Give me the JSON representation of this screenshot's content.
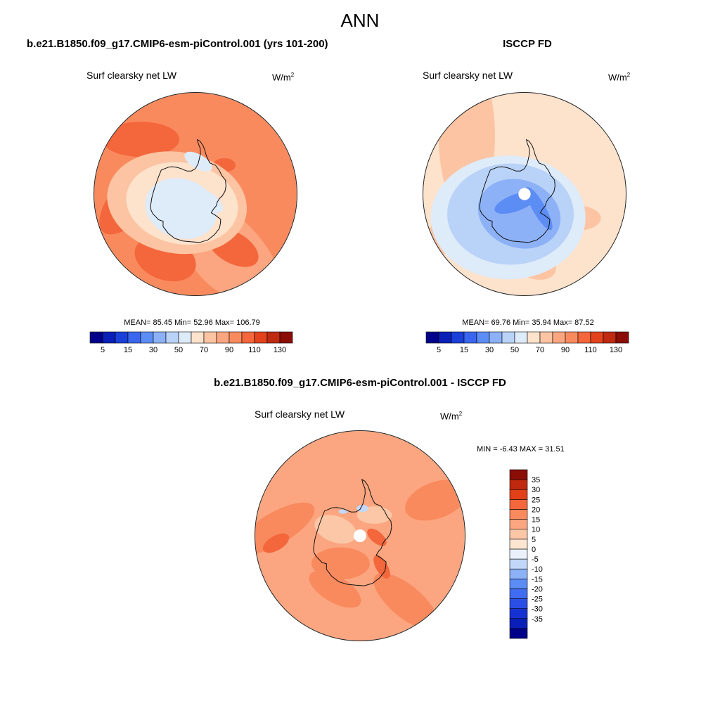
{
  "title": "ANN",
  "colors": {
    "outline": "#222222",
    "coast": "#111111",
    "pole": "#ffffff"
  },
  "abs_levels": {
    "colors": [
      "#00008a",
      "#0a1fb8",
      "#1b40d8",
      "#3a66ef",
      "#5c8df5",
      "#8cb1f7",
      "#b9d2f8",
      "#deebf9",
      "#fde2cc",
      "#fcc4a2",
      "#fba680",
      "#f98a5e",
      "#f4663b",
      "#e2431d",
      "#bf2a10",
      "#8a0d06"
    ],
    "tick_labels": [
      "5",
      "15",
      "30",
      "50",
      "70",
      "90",
      "110",
      "130"
    ]
  },
  "diff_levels": {
    "colors": [
      "#00008a",
      "#0a1fb8",
      "#1631d1",
      "#2b4fe6",
      "#3f6cf0",
      "#5c8df5",
      "#8cb1f7",
      "#c3d8f8",
      "#eaf1fb",
      "#fde5d2",
      "#fcc7a6",
      "#fba680",
      "#f98a5e",
      "#f4663b",
      "#e14018",
      "#c0290f",
      "#8a0d06"
    ],
    "tick_labels": [
      "35",
      "30",
      "25",
      "20",
      "15",
      "10",
      "5",
      "0",
      "-5",
      "-10",
      "-15",
      "-20",
      "-25",
      "-30",
      "-35"
    ]
  },
  "panels": [
    {
      "title": "b.e21.B1850.f09_g17.CMIP6-esm-piControl.001 (yrs 101-200)",
      "variable": "Surf clearsky net LW",
      "units_base": "W/m",
      "units_exp": "2",
      "stats": "MEAN=  85.45  Min=  52.96  Max= 106.79",
      "map": {
        "ocean_level": 11,
        "zones": [
          {
            "level": 10,
            "lon": 150,
            "lat": -66,
            "rx": 110,
            "ry": 45,
            "rot": 40
          },
          {
            "level": 10,
            "lon": 140,
            "lat": -68,
            "rx": 95,
            "ry": 40,
            "rot": 60
          },
          {
            "level": 12,
            "lon": 40,
            "lat": -58,
            "rx": 60,
            "ry": 28,
            "rot": -50
          },
          {
            "level": 12,
            "lon": 100,
            "lat": -55,
            "rx": 45,
            "ry": 30,
            "rot": 20
          },
          {
            "level": 12,
            "lon": -10,
            "lat": -52,
            "rx": 55,
            "ry": 25,
            "rot": 0
          },
          {
            "level": 12,
            "lon": 160,
            "lat": -58,
            "rx": 40,
            "ry": 22,
            "rot": 30
          },
          {
            "level": 12,
            "lon": -100,
            "lat": -70,
            "rx": 16,
            "ry": 10,
            "rot": 0
          },
          {
            "level": 9,
            "lon": 60,
            "lat": -80,
            "rx": 100,
            "ry": 72,
            "rot": 10
          },
          {
            "level": 8,
            "lon": 70,
            "lat": -82,
            "rx": 80,
            "ry": 58,
            "rot": 10
          },
          {
            "level": 7,
            "lon": 80,
            "lat": -80,
            "rx": 52,
            "ry": 42,
            "rot": 20
          },
          {
            "level": 7,
            "lon": -60,
            "lat": -74,
            "rx": 22,
            "ry": 10,
            "rot": 30
          },
          {
            "level": 7,
            "lon": -170,
            "lat": -82,
            "rx": 22,
            "ry": 10,
            "rot": 40
          }
        ]
      }
    },
    {
      "title": "ISCCP FD",
      "variable": "Surf clearsky net LW",
      "units_base": "W/m",
      "units_exp": "2",
      "stats": "MEAN=  69.76  Min=  35.94  Max=  87.52",
      "map": {
        "ocean_level": 8,
        "zones": [
          {
            "level": 9,
            "lon": -10,
            "lat": -50,
            "rx": 40,
            "ry": 110,
            "rot": 0
          },
          {
            "level": 9,
            "lon": 60,
            "lat": -55,
            "rx": 55,
            "ry": 30,
            "rot": -40
          },
          {
            "level": 9,
            "lon": 130,
            "lat": -58,
            "rx": 40,
            "ry": 25,
            "rot": 30
          },
          {
            "level": 9,
            "lon": -170,
            "lat": -62,
            "rx": 35,
            "ry": 18,
            "rot": 0
          },
          {
            "level": 7,
            "lon": 90,
            "lat": -76,
            "rx": 110,
            "ry": 88,
            "rot": 0
          },
          {
            "level": 6,
            "lon": 90,
            "lat": -78,
            "rx": 90,
            "ry": 72,
            "rot": 0
          },
          {
            "level": 5,
            "lon": 110,
            "lat": -80,
            "rx": 60,
            "ry": 48,
            "rot": 20
          },
          {
            "level": 4,
            "lon": 80,
            "lat": -84,
            "rx": 32,
            "ry": 12,
            "rot": -20
          },
          {
            "level": 4,
            "lon": 170,
            "lat": -80,
            "rx": 35,
            "ry": 9,
            "rot": 60
          }
        ],
        "pole_hole": true
      }
    },
    {
      "title": "b.e21.B1850.f09_g17.CMIP6-esm-piControl.001 - ISCCP FD",
      "variable": "Surf clearsky net LW",
      "units_base": "W/m",
      "units_exp": "2",
      "stats": "MIN =  -6.43 MAX =  31.51",
      "map": {
        "ocean_level": 11,
        "zones": [
          {
            "level": 12,
            "lon": 30,
            "lat": -50,
            "rx": 60,
            "ry": 22,
            "rot": -30
          },
          {
            "level": 12,
            "lon": 160,
            "lat": -52,
            "rx": 55,
            "ry": 22,
            "rot": 40
          },
          {
            "level": 12,
            "lon": -120,
            "lat": -50,
            "rx": 45,
            "ry": 25,
            "rot": -20
          },
          {
            "level": 12,
            "lon": 100,
            "lat": -62,
            "rx": 40,
            "ry": 18,
            "rot": 30
          },
          {
            "level": 13,
            "lon": 40,
            "lat": -50,
            "rx": 20,
            "ry": 10,
            "rot": -30
          },
          {
            "level": 10,
            "lon": 20,
            "lat": -78,
            "rx": 30,
            "ry": 18,
            "rot": 20
          },
          {
            "level": 10,
            "lon": -90,
            "lat": -78,
            "rx": 24,
            "ry": 12,
            "rot": 0
          },
          {
            "level": 12,
            "lon": 90,
            "lat": -74,
            "rx": 40,
            "ry": 22,
            "rot": 0
          },
          {
            "level": 13,
            "lon": -150,
            "lat": -82,
            "rx": 16,
            "ry": 8,
            "rot": 40
          },
          {
            "level": 13,
            "lon": 160,
            "lat": -72,
            "rx": 18,
            "ry": 8,
            "rot": 60
          },
          {
            "level": 7,
            "lon": -60,
            "lat": -77,
            "rx": 8,
            "ry": 5,
            "rot": 0
          },
          {
            "level": 7,
            "lon": -20,
            "lat": -76,
            "rx": 6,
            "ry": 3,
            "rot": 0
          }
        ],
        "pole_hole": true
      }
    }
  ]
}
